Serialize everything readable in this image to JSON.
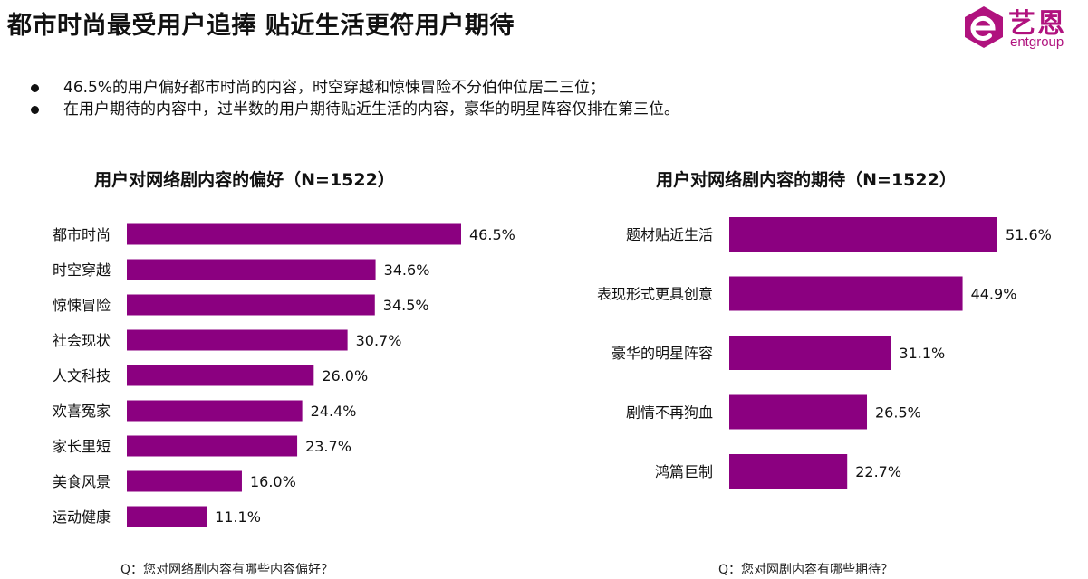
{
  "header": {
    "title": "都市时尚最受用户追捧  贴近生活更符用户期待"
  },
  "logo": {
    "name_cn": "艺恩",
    "name_en": "entgroup",
    "color": "#b0127e"
  },
  "bullets": [
    "46.5%的用户偏好都市时尚的内容，时空穿越和惊悚冒险不分伯仲位居二三位；",
    "在用户期待的内容中，过半数的用户期待贴近生活的内容，豪华的明星阵容仅排在第三位。"
  ],
  "chart_data": [
    {
      "type": "bar",
      "orientation": "horizontal",
      "title": "用户对网络剧内容的偏好（N=1522）",
      "categories": [
        "都市时尚",
        "时空穿越",
        "惊悚冒险",
        "社会现状",
        "人文科技",
        "欢喜冤家",
        "家长里短",
        "美食风景",
        "运动健康"
      ],
      "values": [
        46.5,
        34.6,
        34.5,
        30.7,
        26.0,
        24.4,
        23.7,
        16.0,
        11.1
      ],
      "labels": [
        "46.5%",
        "34.6%",
        "34.5%",
        "30.7%",
        "26.0%",
        "24.4%",
        "23.7%",
        "16.0%",
        "11.1%"
      ],
      "unit": "%",
      "color": "#8b0080",
      "note": "Q：您对网络剧内容有哪些内容偏好？"
    },
    {
      "type": "bar",
      "orientation": "horizontal",
      "title": "用户对网络剧内容的期待（N=1522）",
      "categories": [
        "题材贴近生活",
        "表现形式更具创意",
        "豪华的明星阵容",
        "剧情不再狗血",
        "鸿篇巨制"
      ],
      "values": [
        51.6,
        44.9,
        31.1,
        26.5,
        22.7
      ],
      "labels": [
        "51.6%",
        "44.9%",
        "31.1%",
        "26.5%",
        "22.7%"
      ],
      "unit": "%",
      "color": "#8b0080",
      "note": "Q：您对网剧内容有哪些期待？"
    }
  ]
}
